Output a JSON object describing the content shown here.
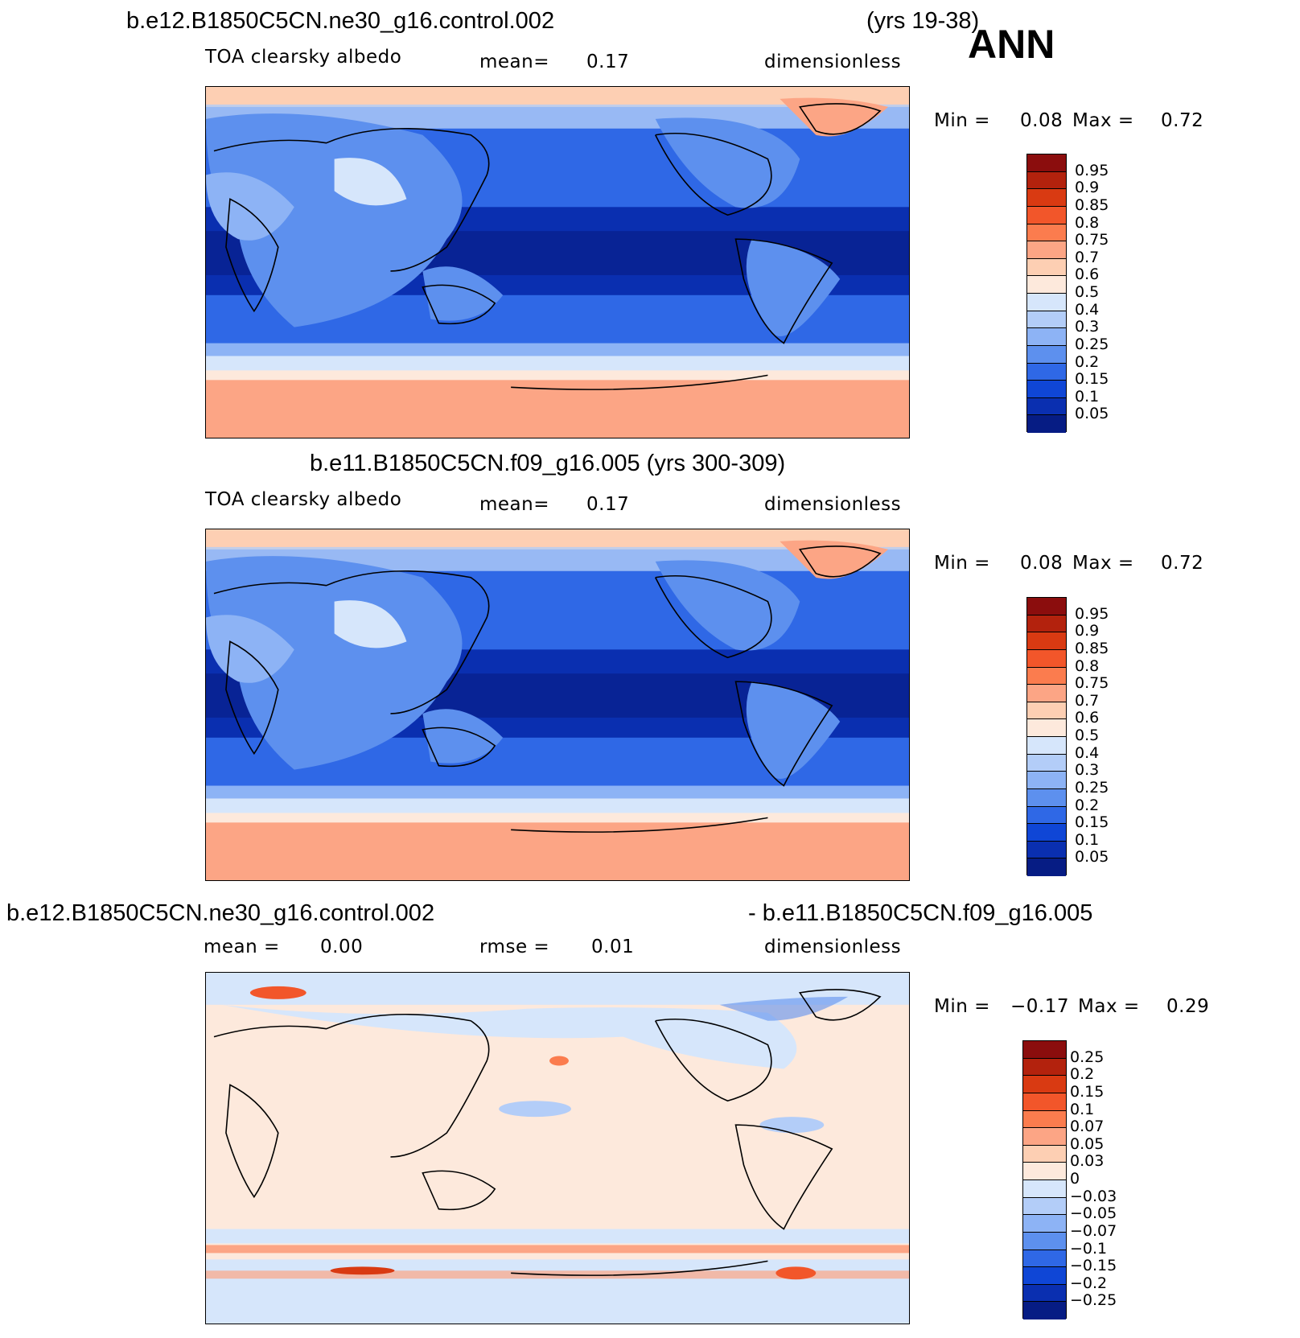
{
  "season": "ANN",
  "panels": [
    {
      "title_left": "b.e12.B1850C5CN.ne30_g16.control.002",
      "title_right": "(yrs 19-38)",
      "variable": "TOA clearsky albedo",
      "mean_label": "mean=",
      "mean_value": "0.17",
      "units": "dimensionless",
      "min_label": "Min =",
      "min_value": "0.08",
      "max_label": "Max =",
      "max_value": "0.72",
      "levels": [
        "0.95",
        "0.9",
        "0.85",
        "0.8",
        "0.75",
        "0.7",
        "0.6",
        "0.5",
        "0.4",
        "0.3",
        "0.25",
        "0.2",
        "0.15",
        "0.1",
        "0.05"
      ]
    },
    {
      "title": "b.e11.B1850C5CN.f09_g16.005 (yrs 300-309)",
      "variable": "TOA clearsky albedo",
      "mean_label": "mean=",
      "mean_value": "0.17",
      "units": "dimensionless",
      "min_label": "Min =",
      "min_value": "0.08",
      "max_label": "Max =",
      "max_value": "0.72",
      "levels": [
        "0.95",
        "0.9",
        "0.85",
        "0.8",
        "0.75",
        "0.7",
        "0.6",
        "0.5",
        "0.4",
        "0.3",
        "0.25",
        "0.2",
        "0.15",
        "0.1",
        "0.05"
      ]
    },
    {
      "title_left": "b.e12.B1850C5CN.ne30_g16.control.002",
      "title_right": "- b.e11.B1850C5CN.f09_g16.005",
      "mean_label": "mean =",
      "mean_value": "0.00",
      "rmse_label": "rmse =",
      "rmse_value": "0.01",
      "units": "dimensionless",
      "min_label": "Min =",
      "min_value": "−0.17",
      "max_label": "Max =",
      "max_value": "0.29",
      "levels": [
        "0.25",
        "0.2",
        "0.15",
        "0.1",
        "0.07",
        "0.05",
        "0.03",
        "0",
        "−0.03",
        "−0.05",
        "−0.07",
        "−0.1",
        "−0.15",
        "−0.2",
        "−0.25"
      ]
    }
  ],
  "colormaps": {
    "albedo": [
      "#8b0d0d",
      "#b3220d",
      "#d93a12",
      "#f2562a",
      "#fb7c4e",
      "#fca585",
      "#fdcfb3",
      "#fde9dc",
      "#d6e6fb",
      "#b3cdf8",
      "#8db3f5",
      "#5d90ee",
      "#2f68e6",
      "#0f46d6",
      "#0a2fb0",
      "#061c84"
    ],
    "diff": [
      "#8b0d0d",
      "#b3220d",
      "#d93a12",
      "#f2562a",
      "#fb7c4e",
      "#fca585",
      "#fdcfb3",
      "#fde9dc",
      "#d6e6fb",
      "#b3cdf8",
      "#8db3f5",
      "#5d90ee",
      "#2f68e6",
      "#0f46d6",
      "#0a2fb0",
      "#061c84"
    ]
  }
}
